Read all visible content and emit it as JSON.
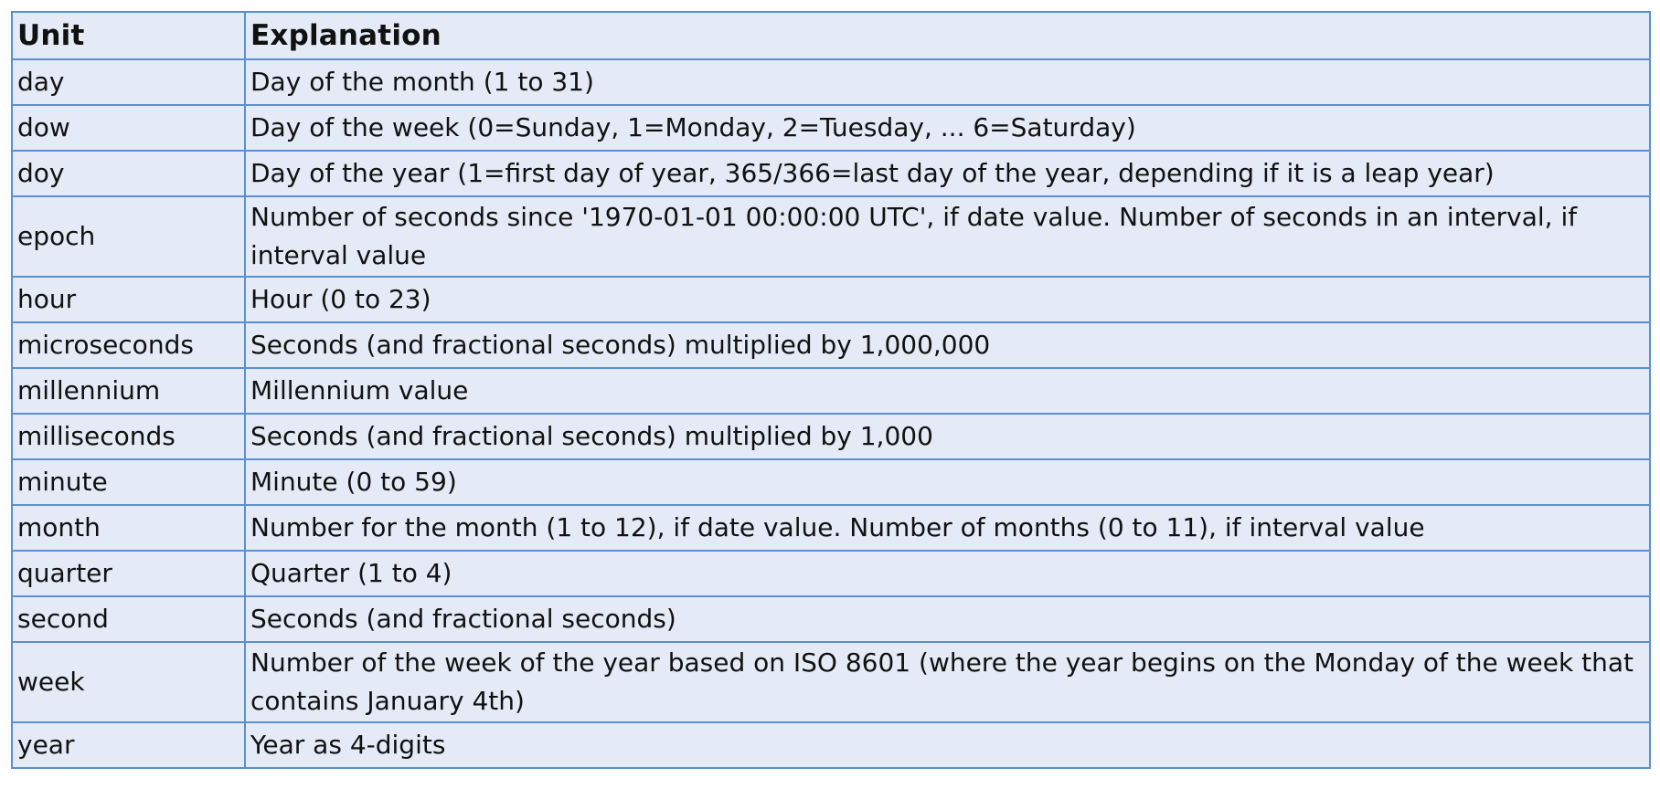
{
  "table": {
    "headers": {
      "unit": "Unit",
      "explanation": "Explanation"
    },
    "rows": [
      {
        "unit": "day",
        "explanation": "Day of the month (1 to 31)"
      },
      {
        "unit": "dow",
        "explanation": "Day of the week (0=Sunday, 1=Monday, 2=Tuesday, ... 6=Saturday)"
      },
      {
        "unit": "doy",
        "explanation": "Day of the year (1=first day of year, 365/366=last day of the year, depending if it is a leap year)"
      },
      {
        "unit": "epoch",
        "explanation": "Number of seconds since '1970-01-01 00:00:00 UTC', if date value. Number of seconds in an interval, if interval value"
      },
      {
        "unit": "hour",
        "explanation": "Hour (0 to 23)"
      },
      {
        "unit": "microseconds",
        "explanation": "Seconds (and fractional seconds) multiplied by 1,000,000"
      },
      {
        "unit": "millennium",
        "explanation": "Millennium value"
      },
      {
        "unit": "milliseconds",
        "explanation": "Seconds (and fractional seconds) multiplied by 1,000"
      },
      {
        "unit": "minute",
        "explanation": "Minute (0 to 59)"
      },
      {
        "unit": "month",
        "explanation": "Number for the month (1 to 12), if date value. Number of months (0 to 11), if interval value"
      },
      {
        "unit": "quarter",
        "explanation": "Quarter (1 to 4)"
      },
      {
        "unit": "second",
        "explanation": "Seconds (and fractional seconds)"
      },
      {
        "unit": "week",
        "explanation": "Number of the week of the year based on ISO 8601 (where the year begins on the Monday of the week that contains January 4th)"
      },
      {
        "unit": "year",
        "explanation": "Year as 4-digits"
      }
    ]
  },
  "colors": {
    "cell_background": "#e4ebf6",
    "border": "#5b8fcf",
    "text": "#111111"
  }
}
